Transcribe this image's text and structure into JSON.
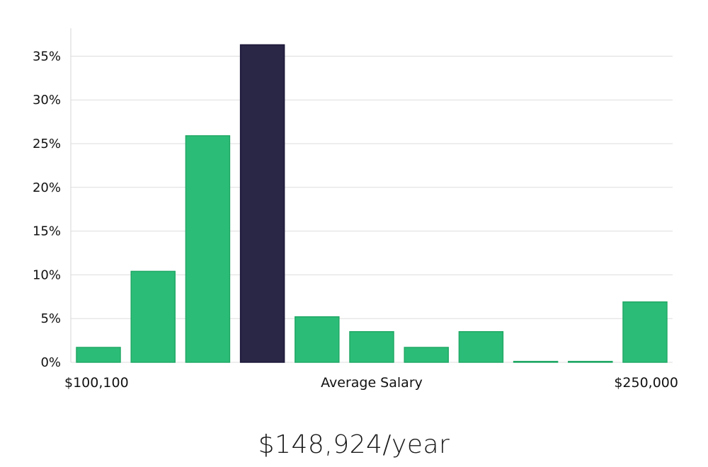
{
  "chart_data": {
    "type": "bar",
    "title": "",
    "xlabel": "Average Salary",
    "ylabel": "",
    "x_range_labels": {
      "min": "$100,100",
      "max": "$250,000"
    },
    "ylim": [
      0,
      38
    ],
    "yticks": [
      0,
      5,
      10,
      15,
      20,
      25,
      30,
      35
    ],
    "ytick_suffix": "%",
    "values": [
      1.7,
      10.4,
      25.9,
      36.3,
      5.2,
      3.5,
      1.7,
      3.5,
      0.1,
      0.1,
      6.9
    ],
    "highlight_index": 3,
    "colors": {
      "default": "#2bbd77",
      "default_edge": "#22a866",
      "highlight": "#2a2646",
      "highlight_edge": "#1a1638",
      "grid": "#dddddd"
    }
  },
  "summary": {
    "salary": "$148,924/year"
  }
}
